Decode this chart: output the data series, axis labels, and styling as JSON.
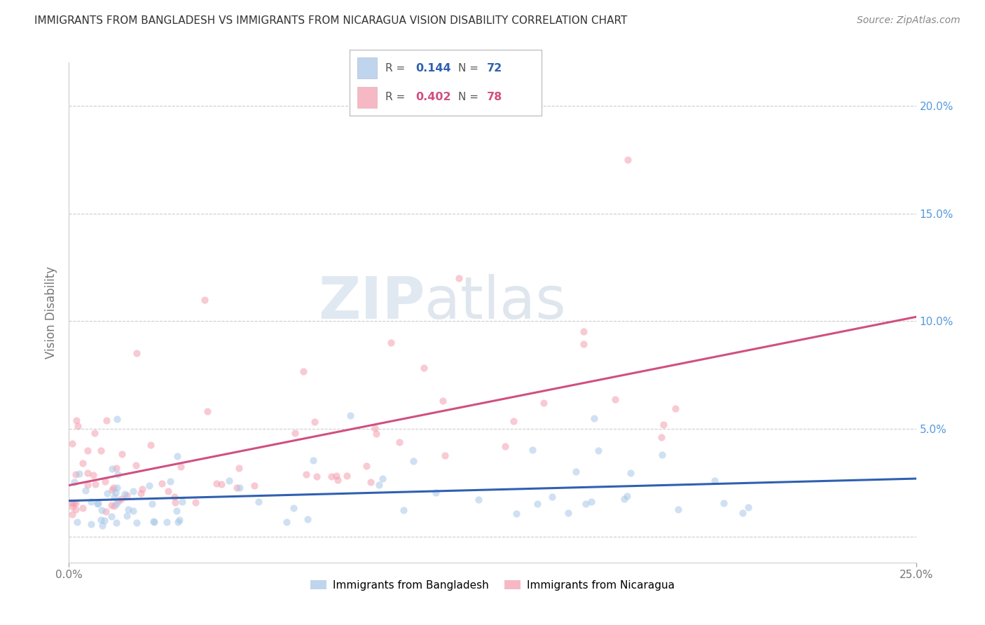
{
  "title": "IMMIGRANTS FROM BANGLADESH VS IMMIGRANTS FROM NICARAGUA VISION DISABILITY CORRELATION CHART",
  "source": "Source: ZipAtlas.com",
  "ylabel": "Vision Disability",
  "xlim": [
    0.0,
    0.25
  ],
  "ylim": [
    -0.012,
    0.22
  ],
  "yticks": [
    0.0,
    0.05,
    0.1,
    0.15,
    0.2
  ],
  "color_bangladesh": "#a8c8e8",
  "color_nicaragua": "#f4a0b0",
  "color_line_bangladesh": "#3060b0",
  "color_line_nicaragua": "#d05080",
  "scatter_alpha": 0.55,
  "scatter_size": 55,
  "watermark_zip": "ZIP",
  "watermark_atlas": "atlas",
  "background_color": "#ffffff",
  "grid_color": "#cccccc",
  "right_tick_color": "#5599dd",
  "legend_bang_r": "0.144",
  "legend_bang_n": "72",
  "legend_nica_r": "0.402",
  "legend_nica_n": "78"
}
